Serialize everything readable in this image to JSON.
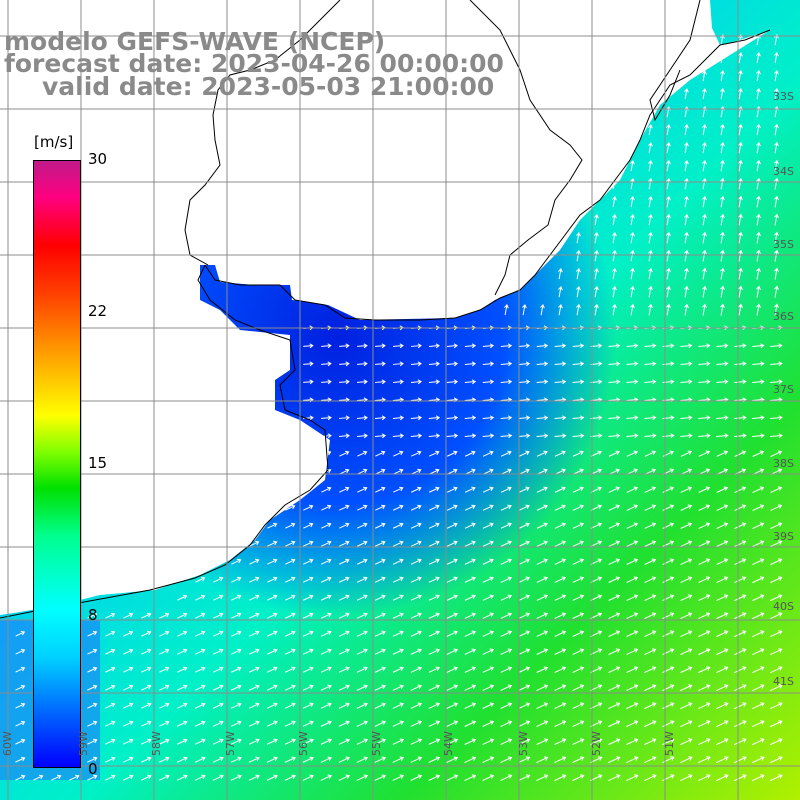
{
  "title": {
    "line1": "modelo GEFS-WAVE (NCEP)",
    "line2": "forecast date: 2023-04-26 00:00:00",
    "line3": "valid date: 2023-05-03 21:00:00"
  },
  "colorbar": {
    "unit": "[m/s]",
    "ticks": [
      "30",
      "22",
      "15",
      "8",
      "0"
    ],
    "range": [
      0,
      30
    ],
    "colors": [
      "#0000ff",
      "#00ffff",
      "#00e000",
      "#ffff00",
      "#ff0000",
      "#c01a8a"
    ]
  },
  "map": {
    "variable": "wind speed and direction",
    "land_color": "#ffffff",
    "coastline_color": "#000000",
    "grid_color": "#8c8c8c",
    "lat_labels": [
      "33S",
      "34S",
      "35S",
      "36S",
      "37S",
      "38S",
      "39S",
      "40S",
      "41S"
    ],
    "lon_labels": [
      "60W",
      "59W",
      "58W",
      "57W",
      "56W",
      "55W",
      "54W",
      "53W",
      "52W",
      "51W"
    ]
  }
}
